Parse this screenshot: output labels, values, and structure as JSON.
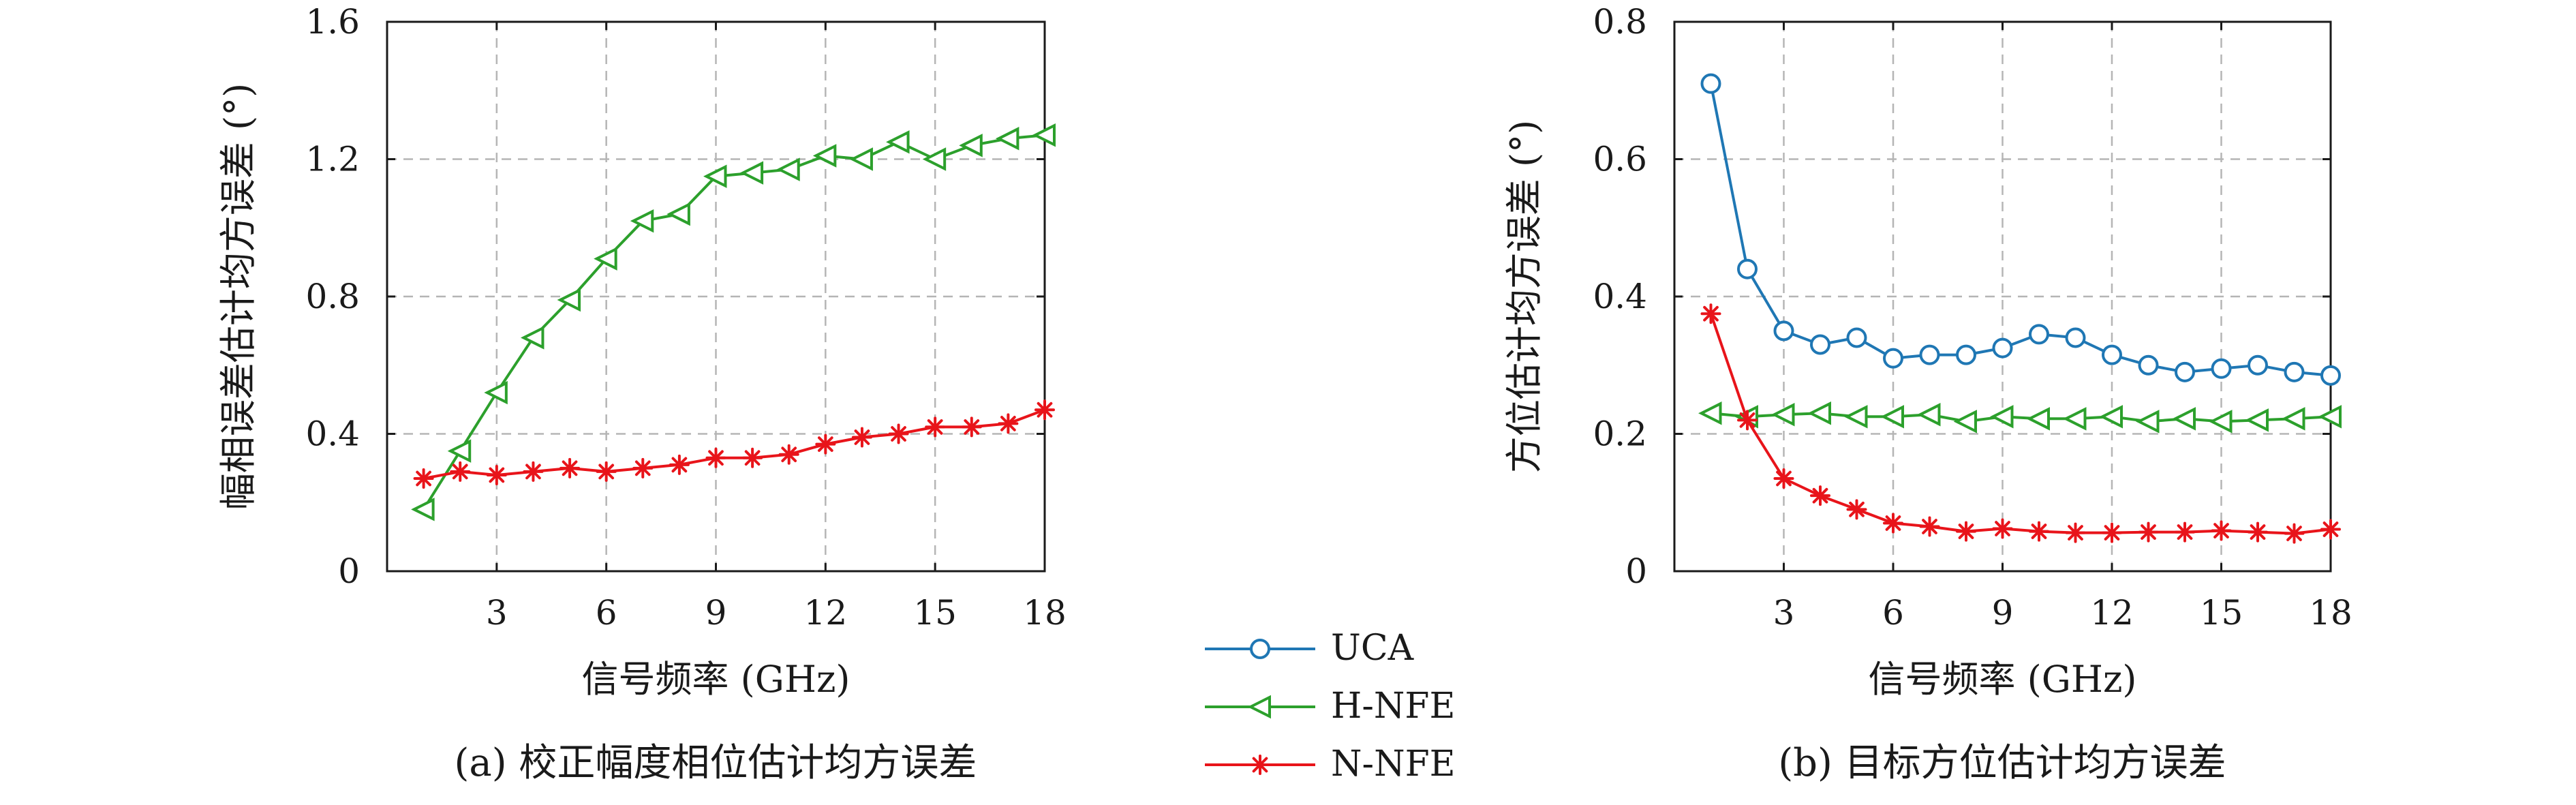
{
  "chart_data": [
    {
      "type": "line",
      "caption": "(a) 校正幅度相位估计均方误差",
      "xlabel": "信号频率 (GHz)",
      "ylabel": "幅相误差估计均方误差 (°)",
      "xlim": [
        0,
        18
      ],
      "ylim": [
        0,
        1.6
      ],
      "xticks": [
        "3",
        "6",
        "9",
        "12",
        "15",
        "18"
      ],
      "yticks": [
        "0",
        "0.4",
        "0.8",
        "1.2",
        "1.6"
      ],
      "grid": true,
      "x": [
        1,
        2,
        3,
        4,
        5,
        6,
        7,
        8,
        9,
        10,
        11,
        12,
        13,
        14,
        15,
        16,
        17,
        18
      ],
      "series": [
        {
          "name": "H-NFE",
          "color": "#2ca02c",
          "marker": "triangle-left",
          "values": [
            0.18,
            0.35,
            0.52,
            0.68,
            0.79,
            0.91,
            1.02,
            1.04,
            1.15,
            1.16,
            1.17,
            1.21,
            1.2,
            1.25,
            1.2,
            1.24,
            1.26,
            1.27
          ]
        },
        {
          "name": "N-NFE",
          "color": "#e8141a",
          "marker": "asterisk",
          "values": [
            0.27,
            0.29,
            0.28,
            0.29,
            0.3,
            0.29,
            0.3,
            0.31,
            0.33,
            0.33,
            0.34,
            0.37,
            0.39,
            0.4,
            0.42,
            0.42,
            0.43,
            0.47
          ]
        }
      ]
    },
    {
      "type": "line",
      "caption": "(b) 目标方位估计均方误差",
      "xlabel": "信号频率 (GHz)",
      "ylabel": "方位估计均方误差 (°)",
      "xlim": [
        0,
        18
      ],
      "ylim": [
        0,
        0.8
      ],
      "xticks": [
        "3",
        "6",
        "9",
        "12",
        "15",
        "18"
      ],
      "yticks": [
        "0",
        "0.2",
        "0.4",
        "0.6",
        "0.8"
      ],
      "grid": true,
      "x": [
        1,
        2,
        3,
        4,
        5,
        6,
        7,
        8,
        9,
        10,
        11,
        12,
        13,
        14,
        15,
        16,
        17,
        18
      ],
      "series": [
        {
          "name": "UCA",
          "color": "#1f77b4",
          "marker": "circle",
          "values": [
            0.71,
            0.44,
            0.35,
            0.33,
            0.34,
            0.31,
            0.315,
            0.315,
            0.325,
            0.345,
            0.34,
            0.315,
            0.3,
            0.29,
            0.295,
            0.3,
            0.29,
            0.285
          ]
        },
        {
          "name": "H-NFE",
          "color": "#2ca02c",
          "marker": "triangle-left",
          "values": [
            0.23,
            0.225,
            0.228,
            0.23,
            0.225,
            0.225,
            0.228,
            0.218,
            0.225,
            0.222,
            0.222,
            0.225,
            0.218,
            0.222,
            0.218,
            0.22,
            0.222,
            0.225
          ]
        },
        {
          "name": "N-NFE",
          "color": "#e8141a",
          "marker": "asterisk",
          "values": [
            0.375,
            0.22,
            0.135,
            0.11,
            0.09,
            0.07,
            0.065,
            0.058,
            0.062,
            0.058,
            0.056,
            0.056,
            0.057,
            0.057,
            0.059,
            0.057,
            0.055,
            0.061
          ]
        }
      ]
    }
  ],
  "legend": {
    "placement": "bottom-center",
    "items": [
      {
        "label": "UCA",
        "color": "#1f77b4",
        "marker": "circle"
      },
      {
        "label": "H-NFE",
        "color": "#2ca02c",
        "marker": "triangle-left"
      },
      {
        "label": "N-NFE",
        "color": "#e8141a",
        "marker": "asterisk"
      }
    ]
  }
}
